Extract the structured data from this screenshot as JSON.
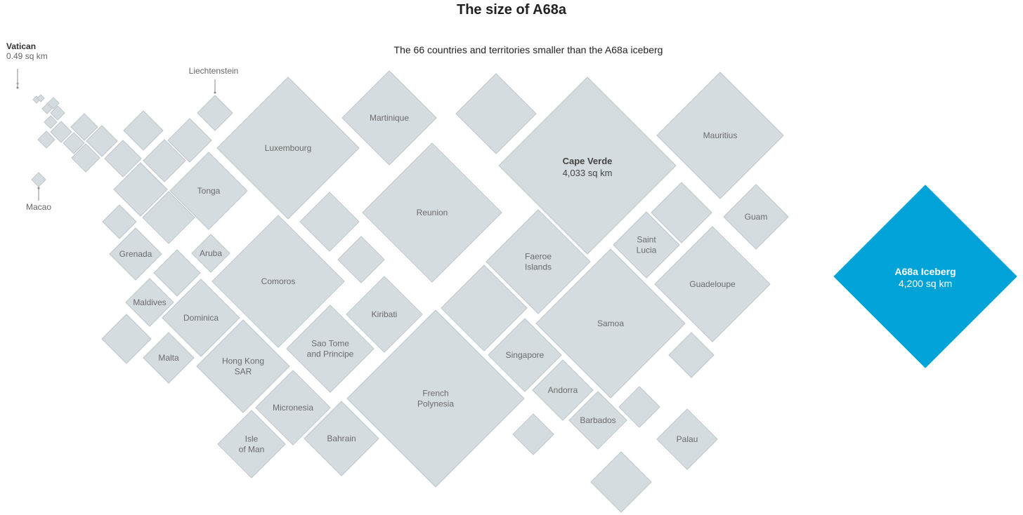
{
  "title": "The size of A68a",
  "subtitle": "The 66 countries and territories smaller than the A68a iceberg",
  "colors": {
    "country": "#d5dcdf",
    "country_stroke": "#bcc5c9",
    "iceberg": "#00a3d8",
    "annotation": "#888888"
  },
  "chart_data": {
    "type": "other",
    "title": "The size of A68a",
    "subtitle": "The 66 countries and territories smaller than the A68a iceberg",
    "unit": "sq km",
    "highlights": [
      {
        "name": "Vatican",
        "value_label": "0.49 sq km",
        "value": 0.49
      },
      {
        "name": "Cape Verde",
        "value_label": "4,033 sq km",
        "value": 4033
      },
      {
        "name": "A68a Iceberg",
        "value_label": "4,200 sq km",
        "value": 4200
      }
    ],
    "labeled_items": [
      "Vatican",
      "Macao",
      "Liechtenstein",
      "Luxembourg",
      "Martinique",
      "Cape Verde",
      "Mauritius",
      "Tonga",
      "Reunion",
      "Guam",
      "Grenada",
      "Aruba",
      "Comoros",
      "Faeroe Islands",
      "Saint Lucia",
      "Guadeloupe",
      "Maldives",
      "Dominica",
      "Kiribati",
      "Samoa",
      "Malta",
      "Hong Kong SAR",
      "Sao Tome and Principe",
      "Singapore",
      "French Polynesia",
      "Andorra",
      "Micronesia",
      "Barbados",
      "Isle of Man",
      "Bahrain",
      "Palau",
      "A68a Iceberg"
    ]
  }
}
